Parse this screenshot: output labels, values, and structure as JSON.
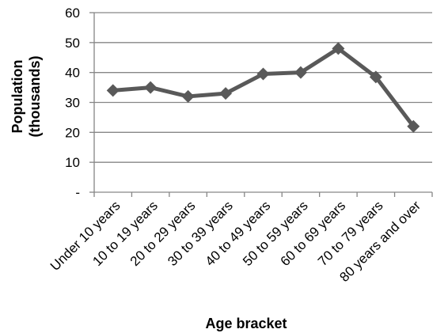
{
  "chart_data": {
    "type": "line",
    "title": "",
    "xlabel": "Age bracket",
    "ylabel_lines": [
      "Population",
      "(thousands)"
    ],
    "categories": [
      "Under 10 years",
      "10 to 19 years",
      "20 to 29 years",
      "30 to 39 years",
      "40 to 49 years",
      "50 to 59 years",
      "60 to 69 years",
      "70 to 79 years",
      "80 years and over"
    ],
    "series": [
      {
        "values": [
          34,
          35,
          32,
          33,
          39.5,
          40,
          48,
          38.5,
          22
        ]
      }
    ],
    "ylim": [
      0,
      60
    ],
    "yticks": [
      0,
      10,
      20,
      30,
      40,
      50,
      60
    ],
    "ytick_labels": [
      "-",
      "10",
      "20",
      "30",
      "40",
      "50",
      "60"
    ],
    "grid": true,
    "legend": "none",
    "marker": "diamond",
    "colors": {
      "series": "#595959",
      "grid": "#868686",
      "axis": "#868686"
    }
  }
}
